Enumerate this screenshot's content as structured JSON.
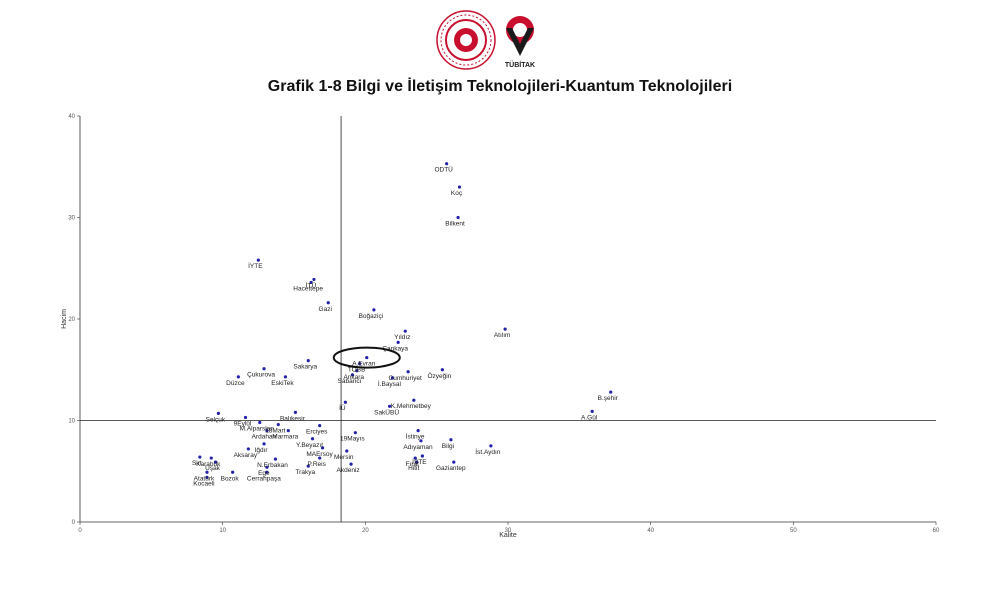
{
  "logos": {
    "left_seal": "ministry-seal",
    "right_logo": "tubitak-logo",
    "right_logo_text": "TÜBİTAK",
    "colors": {
      "seal_red": "#c8102e",
      "tubitak_red": "#c8102e",
      "tubitak_dark": "#1a1a1a"
    }
  },
  "chart_data": {
    "type": "scatter",
    "title": "Grafik 1-8 Bilgi ve İletişim Teknolojileri-Kuantum Teknolojileri",
    "xlabel": "Kalite",
    "ylabel": "Hacim",
    "xlim": [
      0,
      60
    ],
    "ylim": [
      0,
      40
    ],
    "xticks": [
      0,
      10,
      20,
      30,
      40,
      50,
      60
    ],
    "yticks": [
      0,
      10,
      20,
      30,
      40
    ],
    "reference_lines": {
      "x": 18.3,
      "y": 10
    },
    "highlight": {
      "label": "A.Evran",
      "shape": "ellipse"
    },
    "point_color": "#2222aa",
    "points": [
      {
        "label": "ODTÜ",
        "x": 25.7,
        "y": 35.3
      },
      {
        "label": "Koç",
        "x": 26.6,
        "y": 33.0
      },
      {
        "label": "Bilkent",
        "x": 26.5,
        "y": 30.0
      },
      {
        "label": "İYTE",
        "x": 12.5,
        "y": 25.8
      },
      {
        "label": "İTÜ",
        "x": 16.4,
        "y": 23.9
      },
      {
        "label": "Hacettepe",
        "x": 16.2,
        "y": 23.6
      },
      {
        "label": "Gazi",
        "x": 17.4,
        "y": 21.6
      },
      {
        "label": "Boğaziçi",
        "x": 20.6,
        "y": 20.9
      },
      {
        "label": "Atılım",
        "x": 29.8,
        "y": 19.0
      },
      {
        "label": "Yıldız",
        "x": 22.8,
        "y": 18.8
      },
      {
        "label": "Çankaya",
        "x": 22.3,
        "y": 17.7
      },
      {
        "label": "A.Evran",
        "x": 20.1,
        "y": 16.2
      },
      {
        "label": "Sakarya",
        "x": 16.0,
        "y": 15.9
      },
      {
        "label": "TOBB",
        "x": 19.6,
        "y": 15.6
      },
      {
        "label": "Çukurova",
        "x": 12.9,
        "y": 15.1
      },
      {
        "label": "Cumhuriyet",
        "x": 23.0,
        "y": 14.8
      },
      {
        "label": "Özyeğin",
        "x": 25.4,
        "y": 15.0
      },
      {
        "label": "Ankara",
        "x": 19.4,
        "y": 14.9
      },
      {
        "label": "Sabancı",
        "x": 19.1,
        "y": 14.5
      },
      {
        "label": "EskiTek",
        "x": 14.4,
        "y": 14.3
      },
      {
        "label": "İ.Baysal",
        "x": 21.9,
        "y": 14.2
      },
      {
        "label": "Düzce",
        "x": 11.1,
        "y": 14.3
      },
      {
        "label": "B.şehir",
        "x": 37.2,
        "y": 12.8
      },
      {
        "label": "K.Mehmetbey",
        "x": 23.4,
        "y": 12.0
      },
      {
        "label": "İÜ",
        "x": 18.6,
        "y": 11.8
      },
      {
        "label": "SakÜBÜ",
        "x": 21.7,
        "y": 11.4
      },
      {
        "label": "A.Gül",
        "x": 35.9,
        "y": 10.9
      },
      {
        "label": "Selçuk",
        "x": 9.7,
        "y": 10.7
      },
      {
        "label": "9Eylül",
        "x": 11.6,
        "y": 10.3
      },
      {
        "label": "Balıkesir",
        "x": 15.1,
        "y": 10.8
      },
      {
        "label": "M.Alparslan",
        "x": 12.6,
        "y": 9.8
      },
      {
        "label": "18Mart",
        "x": 13.9,
        "y": 9.6
      },
      {
        "label": "Erciyes",
        "x": 16.8,
        "y": 9.5
      },
      {
        "label": "Ardahan",
        "x": 13.1,
        "y": 9.0
      },
      {
        "label": "Marmara",
        "x": 14.6,
        "y": 9.0
      },
      {
        "label": "Y.Beyazıt",
        "x": 16.3,
        "y": 8.2
      },
      {
        "label": "19Mayıs",
        "x": 19.3,
        "y": 8.8
      },
      {
        "label": "İstinye",
        "x": 23.7,
        "y": 9.0
      },
      {
        "label": "Bilgi",
        "x": 26.0,
        "y": 8.1
      },
      {
        "label": "Adıyaman",
        "x": 23.9,
        "y": 8.0
      },
      {
        "label": "İst.Aydın",
        "x": 28.8,
        "y": 7.5
      },
      {
        "label": "Iğdır",
        "x": 12.9,
        "y": 7.7
      },
      {
        "label": "Aksaray",
        "x": 11.8,
        "y": 7.2
      },
      {
        "label": "MAErsoy",
        "x": 17.0,
        "y": 7.3
      },
      {
        "label": "Mersin",
        "x": 18.7,
        "y": 7.0
      },
      {
        "label": "İSTE",
        "x": 24.0,
        "y": 6.5
      },
      {
        "label": "Sirt",
        "x": 8.4,
        "y": 6.4
      },
      {
        "label": "Karabük",
        "x": 9.2,
        "y": 6.3
      },
      {
        "label": "N.Erbakan",
        "x": 13.7,
        "y": 6.2
      },
      {
        "label": "P.Reis",
        "x": 16.8,
        "y": 6.3
      },
      {
        "label": "Gaziantep",
        "x": 26.2,
        "y": 5.9
      },
      {
        "label": "Fırat",
        "x": 23.5,
        "y": 6.3
      },
      {
        "label": "Hitit",
        "x": 23.6,
        "y": 5.9
      },
      {
        "label": "Uşak",
        "x": 9.5,
        "y": 5.9
      },
      {
        "label": "Ege",
        "x": 13.1,
        "y": 5.4
      },
      {
        "label": "Akdeniz",
        "x": 19.0,
        "y": 5.7
      },
      {
        "label": "Atatürk",
        "x": 8.9,
        "y": 4.9
      },
      {
        "label": "Bozok",
        "x": 10.7,
        "y": 4.9
      },
      {
        "label": "Cerrahpaşa",
        "x": 13.1,
        "y": 4.9
      },
      {
        "label": "Trakya",
        "x": 16.0,
        "y": 5.5
      },
      {
        "label": "Kocaeli",
        "x": 8.9,
        "y": 4.4
      }
    ]
  }
}
